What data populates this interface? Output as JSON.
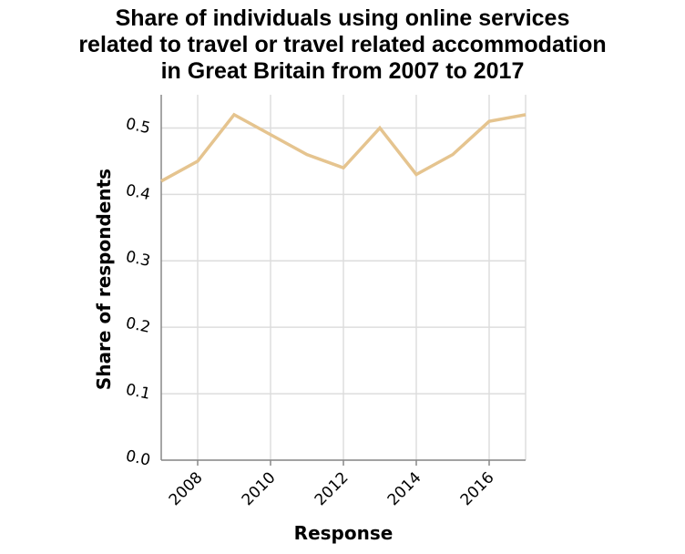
{
  "chart_data": {
    "type": "line",
    "title_lines": [
      "Share of individuals using online services",
      "related to travel or travel related accommodation",
      "in Great Britain from 2007 to 2017"
    ],
    "xlabel": "Response",
    "ylabel": "Share of respondents",
    "x": [
      2007,
      2008,
      2009,
      2010,
      2011,
      2012,
      2013,
      2014,
      2015,
      2016,
      2017
    ],
    "series": [
      {
        "values": [
          0.42,
          0.45,
          0.52,
          0.49,
          0.46,
          0.44,
          0.5,
          0.43,
          0.46,
          0.51,
          0.52
        ]
      }
    ],
    "xlim": [
      2007,
      2017
    ],
    "ylim": [
      0,
      0.55
    ],
    "x_ticks": [
      2008,
      2010,
      2012,
      2014,
      2016
    ],
    "x_tick_labels": [
      "2008",
      "2010",
      "2012",
      "2014",
      "2016"
    ],
    "y_ticks": [
      0,
      0.1,
      0.2,
      0.3,
      0.4,
      0.5
    ],
    "y_tick_labels": [
      "0.0",
      "0.1",
      "0.2",
      "0.3",
      "0.4",
      "0.5"
    ],
    "grid": true,
    "line_color": "#e5c48f"
  }
}
